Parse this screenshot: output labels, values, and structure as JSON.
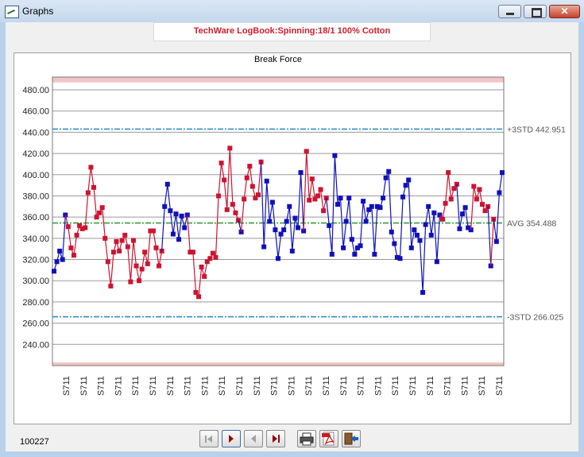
{
  "window": {
    "title": "Graphs"
  },
  "header": {
    "text": "TechWare LogBook:Spinning:18/1 100% Cotton"
  },
  "footer": {
    "count": "100227"
  },
  "colors": {
    "red": "#cc1430",
    "blue": "#1010bb",
    "limit": "#2b8fcc",
    "avg": "#3a9a3a",
    "band": "#f4c4c4",
    "grid": "#9a9a9a"
  },
  "icons": [
    "first-record-icon",
    "next-record-icon",
    "previous-record-icon",
    "last-record-icon",
    "print-icon",
    "pdf-export-icon",
    "exit-icon"
  ],
  "chart_data": {
    "type": "line",
    "title": "Break Force",
    "ylim": [
      220,
      492
    ],
    "y_ticks": [
      "240.00",
      "260.00",
      "280.00",
      "300.00",
      "320.00",
      "340.00",
      "360.00",
      "380.00",
      "400.00",
      "420.00",
      "440.00",
      "460.00",
      "480.00"
    ],
    "x_tick_label": "S711",
    "x_tick_count": 26,
    "grid": true,
    "limits": [
      {
        "label": "+3STD 442.951",
        "value": 442.951,
        "style": "dashdot-blue"
      },
      {
        "label": "AVG 354.488",
        "value": 354.488,
        "style": "dashdot-green"
      },
      {
        "label": "-3STD 266.025",
        "value": 266.025,
        "style": "dashdot-blue"
      }
    ],
    "series": [
      {
        "color": "blue",
        "values": [
          309,
          318,
          328,
          320,
          362
        ]
      },
      {
        "color": "red",
        "values": [
          362,
          351,
          331,
          324,
          343,
          352,
          349,
          350,
          383,
          407,
          388,
          360,
          364,
          369,
          340,
          318,
          295,
          327,
          337,
          328,
          338,
          343,
          332,
          299,
          338,
          314,
          300,
          311,
          327,
          316,
          347,
          347,
          331,
          314,
          328
        ]
      },
      {
        "color": "blue",
        "values": [
          328,
          370,
          391,
          366,
          344,
          363,
          339,
          361,
          350,
          362
        ]
      },
      {
        "color": "red",
        "values": [
          362,
          327,
          327,
          289,
          285,
          313,
          304,
          318,
          321,
          326,
          322,
          380,
          411,
          395,
          367,
          425,
          372,
          364,
          357
        ]
      },
      {
        "color": "blue",
        "values": [
          357,
          346
        ]
      },
      {
        "color": "red",
        "values": [
          346,
          377,
          397,
          408,
          389,
          378,
          381,
          412
        ]
      },
      {
        "color": "blue",
        "values": [
          412,
          332,
          394,
          356,
          374,
          348,
          321,
          344,
          348,
          356,
          370,
          328,
          359,
          350,
          402,
          347
        ]
      },
      {
        "color": "red",
        "values": [
          347,
          422,
          376,
          396,
          377,
          380,
          386,
          366,
          378
        ]
      },
      {
        "color": "blue",
        "values": [
          378,
          352,
          325,
          418,
          372,
          378,
          331,
          356,
          378,
          339,
          325,
          331,
          333,
          375,
          356,
          367,
          370,
          325,
          370,
          369,
          378,
          397,
          403,
          346,
          335,
          322,
          321,
          379,
          390,
          395,
          331,
          348,
          343,
          338,
          289,
          353,
          370,
          343,
          364,
          318,
          362
        ]
      },
      {
        "color": "red",
        "values": [
          362,
          358,
          373,
          402,
          377,
          387,
          391
        ]
      },
      {
        "color": "blue",
        "values": [
          391,
          349,
          363,
          369,
          350,
          348
        ]
      },
      {
        "color": "red",
        "values": [
          348,
          389,
          377,
          386,
          372,
          366,
          370
        ]
      },
      {
        "color": "blue",
        "values": [
          370,
          314
        ]
      },
      {
        "color": "red",
        "values": [
          314,
          358
        ]
      },
      {
        "color": "blue",
        "values": [
          358,
          337,
          383,
          402
        ]
      }
    ]
  }
}
